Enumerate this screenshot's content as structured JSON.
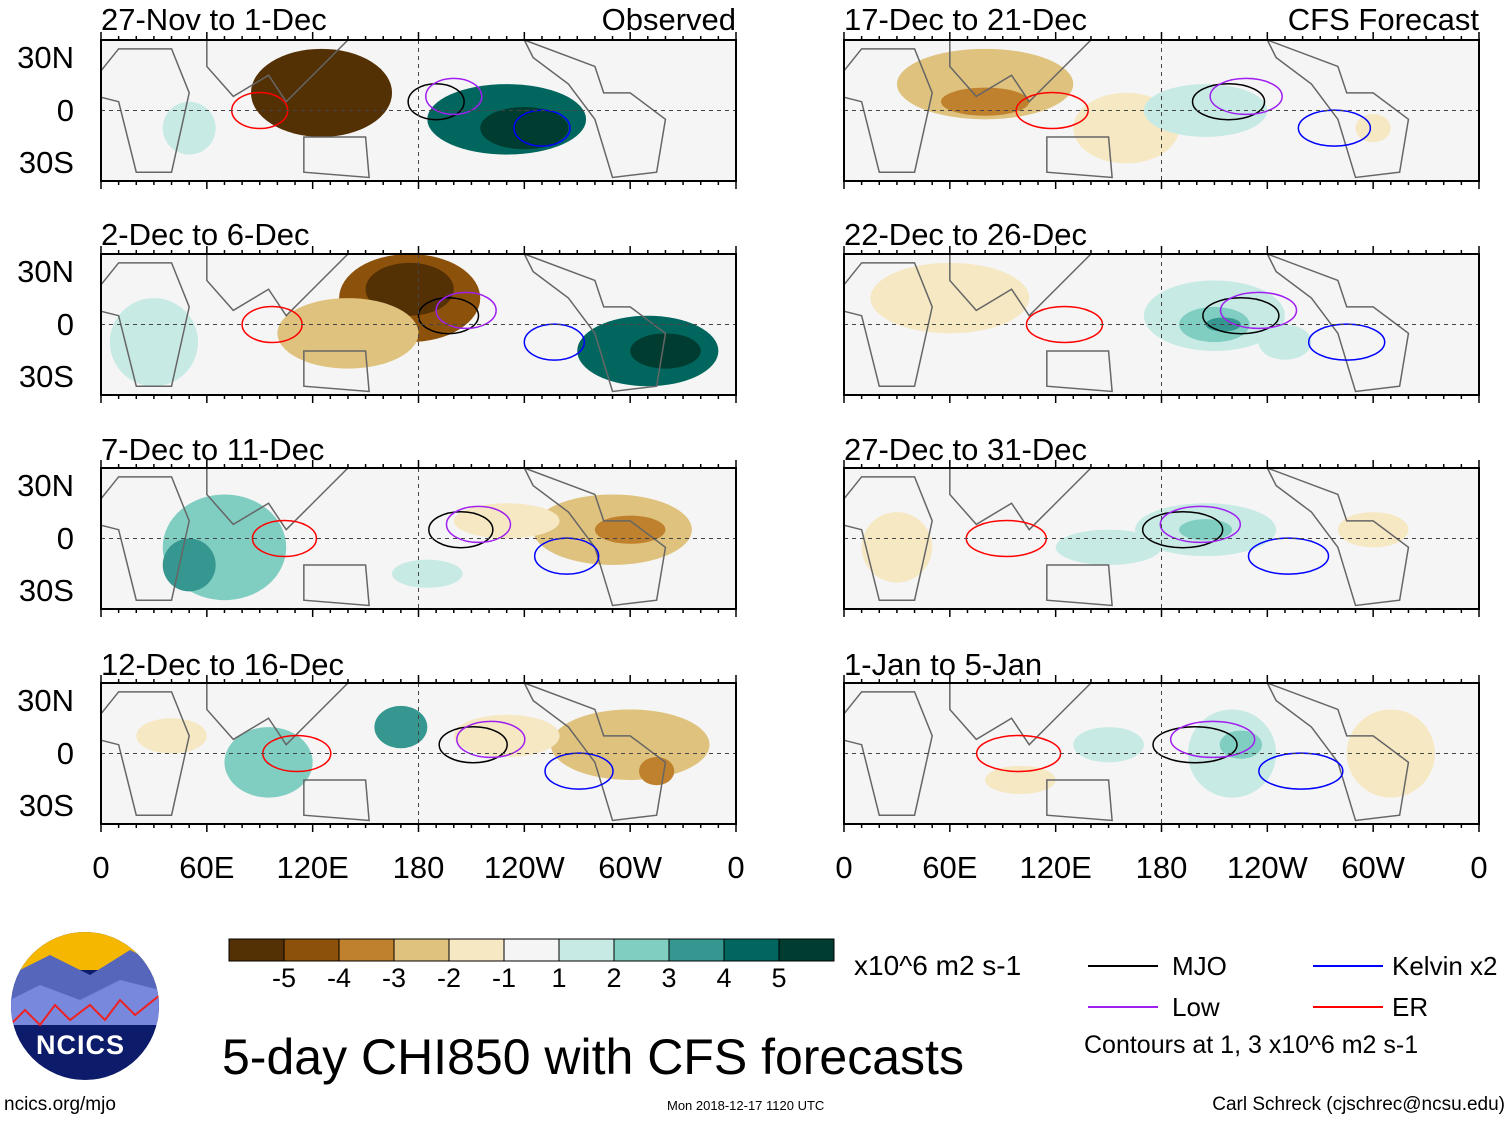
{
  "chart_data": {
    "type": "heatmap",
    "title": "5-day CHI850 with CFS forecasts",
    "units": "x10^6 m2 s-1",
    "colorbar": {
      "ticks": [
        "-5",
        "-4",
        "-3",
        "-2",
        "-1",
        "1",
        "2",
        "3",
        "4",
        "5"
      ],
      "colors": [
        "#543005",
        "#8c510a",
        "#bf812d",
        "#dfc27d",
        "#f6e8c3",
        "#f5f5f5",
        "#c7eae5",
        "#80cdc1",
        "#35978f",
        "#01665e",
        "#003c30"
      ]
    },
    "lat_ticks": [
      "30N",
      "0",
      "30S"
    ],
    "lon_ticks": [
      "0",
      "60E",
      "120E",
      "180",
      "120W",
      "60W",
      "0"
    ],
    "column_labels": {
      "left": "Observed",
      "right": "CFS Forecast"
    },
    "panels": [
      {
        "title": "27-Nov to 1-Dec",
        "column": "Observed",
        "blobs": [
          [
            125,
            10,
            40,
            25,
            -5
          ],
          [
            125,
            10,
            30,
            18,
            -6
          ],
          [
            230,
            -5,
            45,
            20,
            4
          ],
          [
            240,
            -10,
            25,
            12,
            5
          ],
          [
            50,
            -10,
            15,
            15,
            1
          ]
        ]
      },
      {
        "title": "2-Dec to 6-Dec",
        "column": "Observed",
        "blobs": [
          [
            175,
            15,
            40,
            25,
            -4
          ],
          [
            175,
            20,
            25,
            15,
            -5
          ],
          [
            140,
            -5,
            40,
            20,
            -2
          ],
          [
            310,
            -15,
            40,
            20,
            4
          ],
          [
            320,
            -15,
            20,
            10,
            5
          ],
          [
            30,
            -10,
            25,
            25,
            1
          ]
        ]
      },
      {
        "title": "7-Dec to 11-Dec",
        "column": "Observed",
        "blobs": [
          [
            70,
            -5,
            35,
            30,
            2
          ],
          [
            50,
            -15,
            15,
            15,
            3
          ],
          [
            290,
            5,
            45,
            20,
            -2
          ],
          [
            300,
            5,
            20,
            8,
            -3
          ],
          [
            230,
            10,
            30,
            10,
            -1
          ],
          [
            185,
            -20,
            20,
            8,
            1
          ]
        ]
      },
      {
        "title": "12-Dec to 16-Dec",
        "column": "Observed",
        "blobs": [
          [
            95,
            -5,
            25,
            20,
            2
          ],
          [
            170,
            15,
            15,
            12,
            3
          ],
          [
            300,
            5,
            45,
            20,
            -2
          ],
          [
            315,
            -10,
            10,
            8,
            -3
          ],
          [
            40,
            10,
            20,
            10,
            -1
          ],
          [
            230,
            10,
            30,
            12,
            -1
          ]
        ]
      },
      {
        "title": "17-Dec to 21-Dec",
        "column": "CFS Forecast",
        "blobs": [
          [
            80,
            15,
            50,
            20,
            -2
          ],
          [
            80,
            5,
            25,
            8,
            -3
          ],
          [
            160,
            -10,
            30,
            20,
            -1
          ],
          [
            205,
            0,
            35,
            15,
            1
          ],
          [
            300,
            -10,
            10,
            8,
            -1
          ]
        ]
      },
      {
        "title": "22-Dec to 26-Dec",
        "column": "CFS Forecast",
        "blobs": [
          [
            210,
            5,
            40,
            20,
            1
          ],
          [
            210,
            0,
            20,
            10,
            2
          ],
          [
            215,
            0,
            10,
            4,
            3
          ],
          [
            60,
            15,
            45,
            20,
            -1
          ],
          [
            250,
            -10,
            15,
            10,
            1
          ]
        ]
      },
      {
        "title": "27-Dec to 31-Dec",
        "column": "CFS Forecast",
        "blobs": [
          [
            205,
            5,
            40,
            15,
            1
          ],
          [
            205,
            5,
            15,
            6,
            2
          ],
          [
            150,
            -5,
            30,
            10,
            1
          ],
          [
            30,
            -5,
            20,
            20,
            -1
          ],
          [
            300,
            5,
            20,
            10,
            -1
          ]
        ]
      },
      {
        "title": "1-Jan to 5-Jan",
        "column": "CFS Forecast",
        "blobs": [
          [
            220,
            0,
            25,
            25,
            1
          ],
          [
            225,
            5,
            12,
            8,
            2
          ],
          [
            150,
            5,
            20,
            10,
            1
          ],
          [
            310,
            0,
            25,
            25,
            -1
          ],
          [
            100,
            -15,
            20,
            8,
            -1
          ]
        ]
      }
    ],
    "legend": [
      {
        "label": "MJO",
        "color": "#000000"
      },
      {
        "label": "Kelvin x2",
        "color": "#0000ff"
      },
      {
        "label": "Low",
        "color": "#a020f0"
      },
      {
        "label": "ER",
        "color": "#ff0000"
      }
    ],
    "contour_note": "Contours at 1, 3 x10^6 m2 s-1"
  },
  "footer": {
    "logo_text": "NCICS",
    "url": "ncics.org/mjo",
    "timestamp": "Mon 2018-12-17 1120 UTC",
    "credit": "Carl Schreck (cjschrec@ncsu.edu)"
  }
}
